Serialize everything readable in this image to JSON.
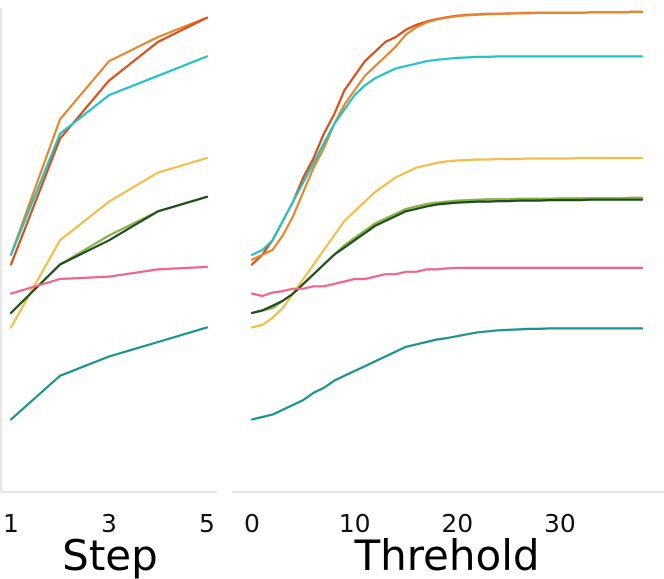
{
  "chart_data": [
    {
      "type": "line",
      "xlabel": "Step",
      "ylabel": "",
      "xticks": [
        1,
        3,
        5
      ],
      "xlim": [
        1,
        5
      ],
      "ylim": [
        0,
        1
      ],
      "grid": false,
      "x": [
        1,
        2,
        3,
        4,
        5
      ],
      "series": [
        {
          "color": "#e8852a",
          "values": [
            0.49,
            0.77,
            0.89,
            0.94,
            0.98
          ]
        },
        {
          "color": "#e04a14",
          "values": [
            0.47,
            0.73,
            0.85,
            0.93,
            0.98
          ]
        },
        {
          "color": "#22c3c3",
          "values": [
            0.49,
            0.74,
            0.82,
            0.86,
            0.9
          ]
        },
        {
          "color": "#f3bd47",
          "values": [
            0.34,
            0.52,
            0.6,
            0.66,
            0.69
          ]
        },
        {
          "color": "#8bb046",
          "values": [
            0.37,
            0.47,
            0.53,
            0.58,
            0.61
          ]
        },
        {
          "color": "#1e4d1e",
          "values": [
            0.37,
            0.47,
            0.52,
            0.58,
            0.61
          ]
        },
        {
          "color": "#f2648a",
          "values": [
            0.41,
            0.44,
            0.445,
            0.46,
            0.465
          ]
        },
        {
          "color": "#18948b",
          "values": [
            0.15,
            0.24,
            0.28,
            0.31,
            0.34
          ]
        }
      ]
    },
    {
      "type": "line",
      "xlabel": "Threhold",
      "ylabel": "",
      "xticks": [
        0,
        10,
        20,
        30
      ],
      "xlim": [
        0,
        38
      ],
      "ylim": [
        0,
        1
      ],
      "grid": false,
      "x": [
        0,
        1,
        2,
        3,
        4,
        5,
        6,
        7,
        8,
        9,
        10,
        11,
        12,
        13,
        14,
        15,
        16,
        17,
        18,
        19,
        20,
        21,
        22,
        23,
        24,
        25,
        26,
        27,
        28,
        29,
        30,
        31,
        32,
        33,
        34,
        35,
        36,
        37,
        38
      ],
      "series": [
        {
          "color": "#e04a14",
          "values": [
            0.47,
            0.49,
            0.52,
            0.56,
            0.6,
            0.65,
            0.69,
            0.74,
            0.78,
            0.83,
            0.86,
            0.89,
            0.91,
            0.93,
            0.94,
            0.955,
            0.965,
            0.972,
            0.977,
            0.981,
            0.984,
            0.986,
            0.987,
            0.988,
            0.988,
            0.989,
            0.989,
            0.99,
            0.99,
            0.99,
            0.99,
            0.99,
            0.99,
            0.991,
            0.991,
            0.991,
            0.991,
            0.992,
            0.992
          ]
        },
        {
          "color": "#e8852a",
          "values": [
            0.48,
            0.49,
            0.5,
            0.53,
            0.57,
            0.62,
            0.67,
            0.71,
            0.76,
            0.8,
            0.83,
            0.86,
            0.88,
            0.9,
            0.92,
            0.945,
            0.96,
            0.97,
            0.976,
            0.98,
            0.983,
            0.985,
            0.986,
            0.987,
            0.988,
            0.988,
            0.989,
            0.989,
            0.99,
            0.99,
            0.99,
            0.99,
            0.99,
            0.991,
            0.991,
            0.991,
            0.991,
            0.992,
            0.992
          ]
        },
        {
          "color": "#22c3c3",
          "values": [
            0.49,
            0.5,
            0.52,
            0.56,
            0.6,
            0.64,
            0.68,
            0.72,
            0.76,
            0.79,
            0.82,
            0.84,
            0.855,
            0.865,
            0.875,
            0.88,
            0.885,
            0.89,
            0.893,
            0.895,
            0.897,
            0.898,
            0.899,
            0.899,
            0.9,
            0.9,
            0.9,
            0.9,
            0.9,
            0.9,
            0.9,
            0.9,
            0.9,
            0.9,
            0.9,
            0.9,
            0.9,
            0.9,
            0.9
          ]
        },
        {
          "color": "#f3bd47",
          "values": [
            0.34,
            0.345,
            0.36,
            0.38,
            0.41,
            0.44,
            0.47,
            0.5,
            0.53,
            0.56,
            0.58,
            0.6,
            0.62,
            0.635,
            0.65,
            0.66,
            0.67,
            0.675,
            0.68,
            0.683,
            0.685,
            0.686,
            0.687,
            0.687,
            0.688,
            0.688,
            0.688,
            0.689,
            0.689,
            0.689,
            0.689,
            0.689,
            0.69,
            0.69,
            0.69,
            0.69,
            0.69,
            0.69,
            0.69
          ]
        },
        {
          "color": "#8bb046",
          "values": [
            0.37,
            0.375,
            0.38,
            0.395,
            0.41,
            0.43,
            0.45,
            0.47,
            0.49,
            0.51,
            0.525,
            0.54,
            0.555,
            0.565,
            0.575,
            0.585,
            0.59,
            0.595,
            0.598,
            0.6,
            0.602,
            0.603,
            0.604,
            0.605,
            0.605,
            0.605,
            0.606,
            0.606,
            0.606,
            0.606,
            0.607,
            0.607,
            0.607,
            0.607,
            0.607,
            0.607,
            0.607,
            0.608,
            0.608
          ]
        },
        {
          "color": "#1e4d1e",
          "values": [
            0.37,
            0.375,
            0.385,
            0.395,
            0.41,
            0.43,
            0.45,
            0.47,
            0.49,
            0.505,
            0.52,
            0.535,
            0.55,
            0.56,
            0.57,
            0.58,
            0.585,
            0.59,
            0.594,
            0.596,
            0.598,
            0.599,
            0.6,
            0.6,
            0.601,
            0.601,
            0.602,
            0.602,
            0.602,
            0.603,
            0.603,
            0.603,
            0.603,
            0.604,
            0.604,
            0.604,
            0.604,
            0.604,
            0.604
          ]
        },
        {
          "color": "#f2648a",
          "values": [
            0.41,
            0.405,
            0.412,
            0.415,
            0.42,
            0.42,
            0.425,
            0.425,
            0.43,
            0.435,
            0.44,
            0.44,
            0.445,
            0.45,
            0.45,
            0.455,
            0.455,
            0.46,
            0.46,
            0.462,
            0.463,
            0.463,
            0.463,
            0.463,
            0.463,
            0.463,
            0.463,
            0.463,
            0.463,
            0.463,
            0.463,
            0.463,
            0.463,
            0.463,
            0.463,
            0.463,
            0.463,
            0.463,
            0.463
          ]
        },
        {
          "color": "#18948b",
          "values": [
            0.15,
            0.155,
            0.16,
            0.17,
            0.18,
            0.19,
            0.205,
            0.215,
            0.23,
            0.24,
            0.25,
            0.26,
            0.27,
            0.28,
            0.29,
            0.3,
            0.305,
            0.31,
            0.315,
            0.318,
            0.322,
            0.326,
            0.33,
            0.332,
            0.334,
            0.335,
            0.336,
            0.337,
            0.337,
            0.338,
            0.338,
            0.338,
            0.338,
            0.338,
            0.338,
            0.338,
            0.338,
            0.338,
            0.338
          ]
        }
      ]
    }
  ]
}
